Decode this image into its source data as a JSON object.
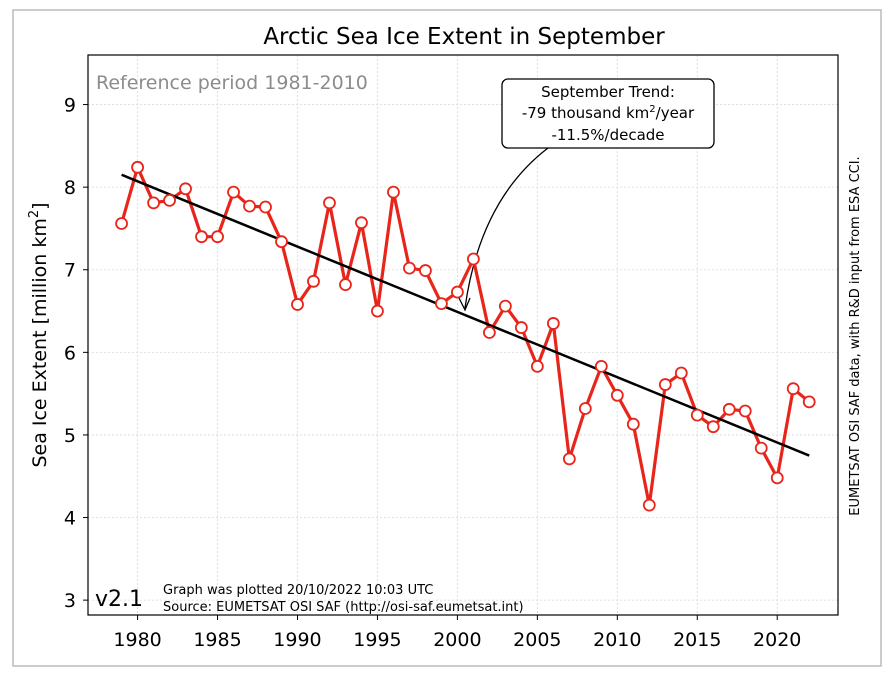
{
  "chart_data": {
    "type": "line",
    "title": "Arctic Sea Ice Extent in September",
    "y_label": [
      "Sea Ice Extent [million km",
      "2",
      "]"
    ],
    "reference_note": "Reference period 1981-2010",
    "version": "v2.1",
    "plot_note": "Graph was plotted 20/10/2022 10:03 UTC",
    "source_note": "Source: EUMETSAT OSI SAF (http://osi-saf.eumetsat.int)",
    "side_note": "EUMETSAT OSI SAF data, with R&D input from ESA CCI.",
    "trend_annotation": [
      "September Trend:",
      [
        "-79 thousand km",
        "2",
        "/year"
      ],
      "-11.5%/decade"
    ],
    "x": [
      1979,
      1980,
      1981,
      1982,
      1983,
      1984,
      1985,
      1986,
      1987,
      1988,
      1989,
      1990,
      1991,
      1992,
      1993,
      1994,
      1995,
      1996,
      1997,
      1998,
      1999,
      2000,
      2001,
      2002,
      2003,
      2004,
      2005,
      2006,
      2007,
      2008,
      2009,
      2010,
      2011,
      2012,
      2013,
      2014,
      2015,
      2016,
      2017,
      2018,
      2019,
      2020,
      2021,
      2022
    ],
    "series": [
      {
        "color": "#e8251a",
        "values": [
          7.56,
          8.24,
          7.81,
          7.84,
          7.98,
          7.4,
          7.4,
          7.94,
          7.77,
          7.76,
          7.34,
          6.58,
          6.86,
          7.81,
          6.82,
          7.57,
          6.5,
          7.94,
          7.02,
          6.99,
          6.59,
          6.73,
          7.13,
          6.24,
          6.56,
          6.3,
          5.83,
          6.35,
          4.71,
          5.32,
          5.83,
          5.48,
          5.13,
          4.15,
          5.61,
          5.75,
          5.24,
          5.1,
          5.31,
          5.29,
          4.84,
          4.48,
          5.56,
          5.4
        ]
      }
    ],
    "trend": {
      "color": "#000000",
      "x": [
        1979,
        2022
      ],
      "values": [
        8.15,
        4.75
      ]
    },
    "xlim": [
      1976.9,
      2023.8
    ],
    "ylim": [
      2.82,
      9.6
    ],
    "xticks": [
      1980,
      1985,
      1990,
      1995,
      2000,
      2005,
      2010,
      2015,
      2020
    ],
    "yticks": [
      3,
      4,
      5,
      6,
      7,
      8,
      9
    ],
    "grid": true
  }
}
